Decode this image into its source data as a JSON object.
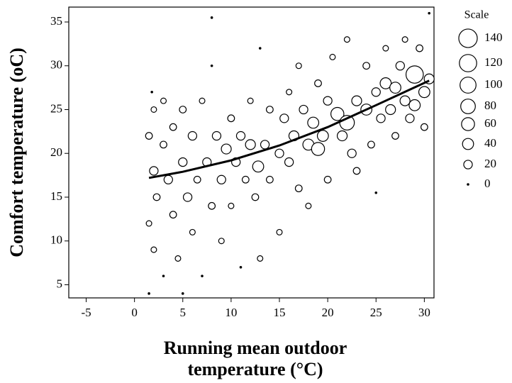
{
  "chart_data": {
    "type": "scatter",
    "xlabel": "Running mean outdoor temperature (°C)",
    "ylabel": "Comfort temperature (oC)",
    "xlim": [
      -6.8,
      31
    ],
    "xticks": [
      -5,
      0,
      5,
      10,
      15,
      20,
      25,
      30
    ],
    "ylim": [
      3.5,
      36.7
    ],
    "yticks": [
      5,
      10,
      15,
      20,
      25,
      30,
      35
    ],
    "x": [
      1.5,
      1.5,
      1.5,
      1.8,
      2,
      2,
      2,
      2.3,
      3,
      3,
      3,
      3.5,
      4,
      4,
      4.5,
      5,
      5,
      5,
      5.5,
      6,
      6,
      6.5,
      7,
      7,
      7.5,
      8,
      8,
      8,
      8.5,
      9,
      9,
      9.5,
      10,
      10,
      10.5,
      11,
      11,
      11.5,
      12,
      12,
      12.5,
      12.8,
      13,
      13,
      13.5,
      14,
      14,
      15,
      15,
      15.5,
      16,
      16,
      16.5,
      17,
      17,
      17.5,
      18,
      18,
      18.5,
      19,
      19,
      19.5,
      20,
      20,
      20.5,
      21,
      21.5,
      22,
      22,
      22.5,
      23,
      23,
      24,
      24,
      24.5,
      25,
      25,
      25.5,
      26,
      26,
      26.5,
      27,
      27,
      27.5,
      28,
      28,
      28.5,
      29,
      29,
      29.5,
      30,
      30,
      30.5,
      30.5
    ],
    "y": [
      22,
      12,
      4,
      27,
      18,
      9,
      25,
      15,
      21,
      6,
      26,
      17,
      13,
      23,
      8,
      19,
      4,
      25,
      15,
      11,
      22,
      17,
      6,
      26,
      19,
      14,
      30,
      35.5,
      22,
      17,
      10,
      20.5,
      24,
      14,
      19,
      22,
      7,
      17,
      21,
      26,
      15,
      18.5,
      32,
      8,
      21,
      17,
      25,
      20,
      11,
      24,
      19,
      27,
      22,
      16,
      30,
      25,
      21,
      14,
      23.5,
      20.5,
      28,
      22,
      26,
      17,
      31,
      24.5,
      22,
      23.5,
      33,
      20,
      26,
      18,
      25,
      30,
      21,
      27,
      15.5,
      24,
      28,
      32,
      25,
      27.5,
      22,
      30,
      26,
      33,
      24,
      29,
      25.5,
      32,
      27,
      23,
      28.5,
      36
    ],
    "size": [
      10,
      5,
      0,
      0,
      20,
      5,
      5,
      10,
      10,
      0,
      5,
      20,
      10,
      10,
      5,
      20,
      0,
      10,
      20,
      5,
      20,
      10,
      0,
      5,
      20,
      10,
      0,
      0,
      20,
      20,
      5,
      30,
      10,
      5,
      20,
      20,
      0,
      10,
      30,
      5,
      10,
      40,
      0,
      5,
      20,
      10,
      10,
      20,
      5,
      20,
      20,
      5,
      30,
      10,
      5,
      20,
      40,
      5,
      40,
      60,
      10,
      40,
      20,
      10,
      5,
      60,
      30,
      80,
      5,
      20,
      30,
      10,
      40,
      10,
      10,
      20,
      0,
      20,
      40,
      5,
      30,
      40,
      10,
      20,
      30,
      5,
      20,
      120,
      40,
      10,
      40,
      10,
      30,
      0
    ],
    "fit_line": {
      "x": [
        1.5,
        5,
        10,
        15,
        20,
        25,
        30.5
      ],
      "y": [
        17.2,
        17.9,
        19.2,
        20.9,
        23,
        25.5,
        28.3
      ]
    },
    "size_legend": {
      "title": "Scale",
      "sizes": [
        140,
        120,
        100,
        80,
        60,
        40,
        20,
        0
      ]
    }
  }
}
